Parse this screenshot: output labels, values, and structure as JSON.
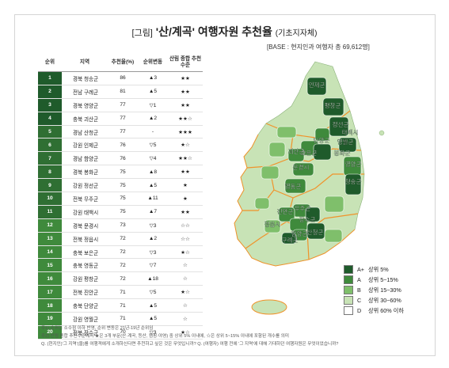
{
  "header": {
    "prefix": "[그림]",
    "main": "'산/계곡' 여행자원 추천율",
    "suffix": "(기초지자체)",
    "base": "[BASE : 현지인과 여행자 총 69,612명]"
  },
  "colors": {
    "A_plus": "#1f5b2b",
    "A": "#3f8a3c",
    "B": "#7fbf6b",
    "C": "#c8e3b6",
    "D": "#ffffff",
    "boundary": "#f0932b"
  },
  "chart_data": {
    "type": "table",
    "columns": [
      "순위",
      "지역",
      "추천율(%)",
      "순위변동",
      "산림 종합 추천 수준"
    ],
    "rows": [
      {
        "rank": "1",
        "region": "경북 청송군",
        "rate": "86",
        "change": "▲3",
        "stars": "★★"
      },
      {
        "rank": "2",
        "region": "전남 구례군",
        "rate": "81",
        "change": "▲5",
        "stars": "★★"
      },
      {
        "rank": "3",
        "region": "경북 영양군",
        "rate": "77",
        "change": "▽1",
        "stars": "★★"
      },
      {
        "rank": "4",
        "region": "충북 괴산군",
        "rate": "77",
        "change": "▲2",
        "stars": "★★☆"
      },
      {
        "rank": "5",
        "region": "경남 산청군",
        "rate": "77",
        "change": "-",
        "stars": "★★★"
      },
      {
        "rank": "6",
        "region": "강원 인제군",
        "rate": "76",
        "change": "▽5",
        "stars": "★☆"
      },
      {
        "rank": "7",
        "region": "경남 함양군",
        "rate": "76",
        "change": "▽4",
        "stars": "★★☆"
      },
      {
        "rank": "8",
        "region": "경북 봉화군",
        "rate": "75",
        "change": "▲8",
        "stars": "★★"
      },
      {
        "rank": "9",
        "region": "강원 정선군",
        "rate": "75",
        "change": "▲5",
        "stars": "★"
      },
      {
        "rank": "10",
        "region": "전북 무주군",
        "rate": "75",
        "change": "▲11",
        "stars": "★"
      },
      {
        "rank": "11",
        "region": "강원 태백시",
        "rate": "75",
        "change": "▲7",
        "stars": "★★"
      },
      {
        "rank": "12",
        "region": "경북 문경시",
        "rate": "73",
        "change": "▽3",
        "stars": "☆☆"
      },
      {
        "rank": "13",
        "region": "전북 정읍시",
        "rate": "72",
        "change": "▲2",
        "stars": "☆☆"
      },
      {
        "rank": "14",
        "region": "충북 보은군",
        "rate": "72",
        "change": "▽3",
        "stars": "★☆"
      },
      {
        "rank": "15",
        "region": "충북 영동군",
        "rate": "72",
        "change": "▽7",
        "stars": "☆"
      },
      {
        "rank": "16",
        "region": "강원 평창군",
        "rate": "72",
        "change": "▲18",
        "stars": "☆"
      },
      {
        "rank": "17",
        "region": "전북 진안군",
        "rate": "71",
        "change": "▽5",
        "stars": "★☆"
      },
      {
        "rank": "18",
        "region": "충북 단양군",
        "rate": "71",
        "change": "▲5",
        "stars": "☆"
      },
      {
        "rank": "19",
        "region": "강원 영월군",
        "rate": "71",
        "change": "▲5",
        "stars": "☆"
      },
      {
        "rank": "20",
        "region": "전북 장수군",
        "rate": "70",
        "change": "▽3",
        "stars": "★☆"
      }
    ],
    "legend": [
      {
        "key": "A+",
        "label": "상위 5%",
        "color": "#1f5b2b"
      },
      {
        "key": "A",
        "label": "상위 5~15%",
        "color": "#3f8a3c"
      },
      {
        "key": "B",
        "label": "상위 15~30%",
        "color": "#7fbf6b"
      },
      {
        "key": "C",
        "label": "상위 30~60%",
        "color": "#c8e3b6"
      },
      {
        "key": "D",
        "label": "상위 60% 이하",
        "color": "#ffffff"
      }
    ]
  },
  "map_labels": [
    "인제군",
    "평창군",
    "정선군",
    "영월군",
    "태백시",
    "단양군",
    "봉화군",
    "영양군",
    "괴산군",
    "문경시",
    "보은군",
    "청송군",
    "영동군",
    "무주군",
    "진안군",
    "장수군",
    "정읍시",
    "함양군",
    "구례군",
    "산청군"
  ],
  "notes": [
    "주1) 순위는 소수점 이하 반영, 순위 변동은 21년-19년 순위임",
    "주2) 산림 종합 추천수준에서 ★은 3개 부문(산·계곡, 등산, 캠핑·야영) 중 상위 5% 이내에, ☆은 상위 5~15% 이내에 포함된 개수를 의미",
    "Q. (현지인)'그 지역'(을)를 여행객에게 소개하신다면 추천하고 싶은 것은 무엇입니까? Q. (여행자) 여행 전에 '그 지역'에 대해 기대하던 여행자원은 무엇이었습니까?"
  ]
}
